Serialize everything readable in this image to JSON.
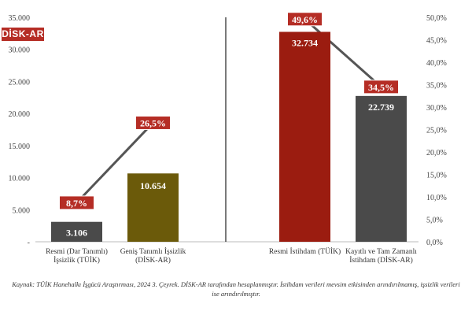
{
  "logo_text": "DİSK-AR",
  "source_note": "Kaynak: TÜİK Hanehalkı İşgücü Araştırması, 2024 3. Çeyrek. DİSK-AR tarafından hesaplanmıştır. İstihdam verileri mevsim etkisinden arındırılmamış, işsizlik verileri ise arındırılmıştır.",
  "colors": {
    "olive": "#6b5a0a",
    "red": "#9b1c10",
    "gray": "#4a4a4a",
    "badge": "#b52d25",
    "line": "#555555"
  },
  "chart_data": {
    "type": "bar",
    "left_axis": {
      "ticks": [
        "-",
        "5.000",
        "10.000",
        "15.000",
        "20.000",
        "25.000",
        "30.000",
        "35.000"
      ],
      "range": [
        0,
        35000
      ]
    },
    "right_axis": {
      "ticks": [
        "0,0%",
        "5,0%",
        "10,0%",
        "15,0%",
        "20,0%",
        "25,0%",
        "30,0%",
        "35,0%",
        "40,0%",
        "45,0%",
        "50,0%"
      ],
      "range": [
        0,
        50
      ]
    },
    "bars": [
      {
        "label_lines": [
          "Resmi (Dar Tanımlı)",
          "İşsizlik (TÜİK)"
        ],
        "value": 3106,
        "value_label": "3.106",
        "color": "#4a4a4a",
        "pct": 8.7,
        "pct_label": "8,7%"
      },
      {
        "label_lines": [
          "Geniş Tanımlı İşsizlik",
          "(DİSK-AR)"
        ],
        "value": 10654,
        "value_label": "10.654",
        "color": "#6b5a0a",
        "pct": 26.5,
        "pct_label": "26,5%"
      },
      {
        "label_lines": [
          "Resmi İstihdam (TÜİK)"
        ],
        "value": 32734,
        "value_label": "32.734",
        "color": "#9b1c10",
        "pct": 49.6,
        "pct_label": "49,6%"
      },
      {
        "label_lines": [
          "Kayıtlı ve Tam Zamanlı",
          "İstihdam (DİSK-AR)"
        ],
        "value": 22739,
        "value_label": "22.739",
        "color": "#4a4a4a",
        "pct": 34.5,
        "pct_label": "34,5%"
      }
    ],
    "line_pairs": [
      [
        0,
        1
      ],
      [
        2,
        3
      ]
    ]
  }
}
